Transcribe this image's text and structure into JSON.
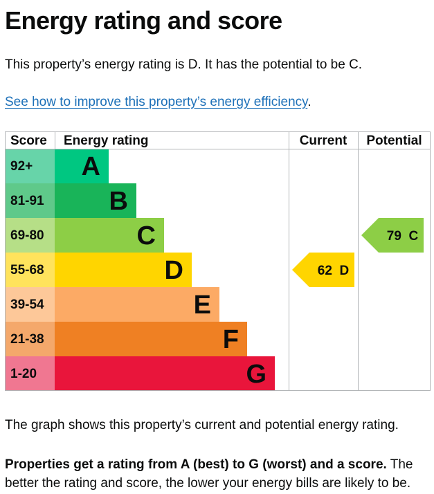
{
  "page": {
    "heading": "Energy rating and score",
    "intro": "This property’s energy rating is D. It has the potential to be C.",
    "link_text": "See how to improve this property’s energy efficiency",
    "link_suffix": ".",
    "graph_caption": "The graph shows this property’s current and potential energy rating.",
    "rating_note_bold": "Properties get a rating from A (best) to G (worst) and a score.",
    "rating_note_rest": " The better the rating and score, the lower your energy bills are likely to be."
  },
  "chart_data": {
    "type": "bar",
    "headers": {
      "score": "Score",
      "rating": "Energy rating",
      "current": "Current",
      "potential": "Potential"
    },
    "bands": [
      {
        "letter": "A",
        "score_range": "92+",
        "color": "#00c781",
        "score_bg": "#67d4a9"
      },
      {
        "letter": "B",
        "score_range": "81-91",
        "color": "#19b459",
        "score_bg": "#5fc98a"
      },
      {
        "letter": "C",
        "score_range": "69-80",
        "color": "#8dce46",
        "score_bg": "#b6df87"
      },
      {
        "letter": "D",
        "score_range": "55-68",
        "color": "#ffd500",
        "score_bg": "#ffe35c"
      },
      {
        "letter": "E",
        "score_range": "39-54",
        "color": "#fcaa65",
        "score_bg": "#fdc899"
      },
      {
        "letter": "F",
        "score_range": "21-38",
        "color": "#ef8023",
        "score_bg": "#f4a86b"
      },
      {
        "letter": "G",
        "score_range": "1-20",
        "color": "#e9153b",
        "score_bg": "#f07791"
      }
    ],
    "current": {
      "score": 62,
      "band": "D",
      "label": "62  D"
    },
    "potential": {
      "score": 79,
      "band": "C",
      "label": "79  C"
    }
  }
}
